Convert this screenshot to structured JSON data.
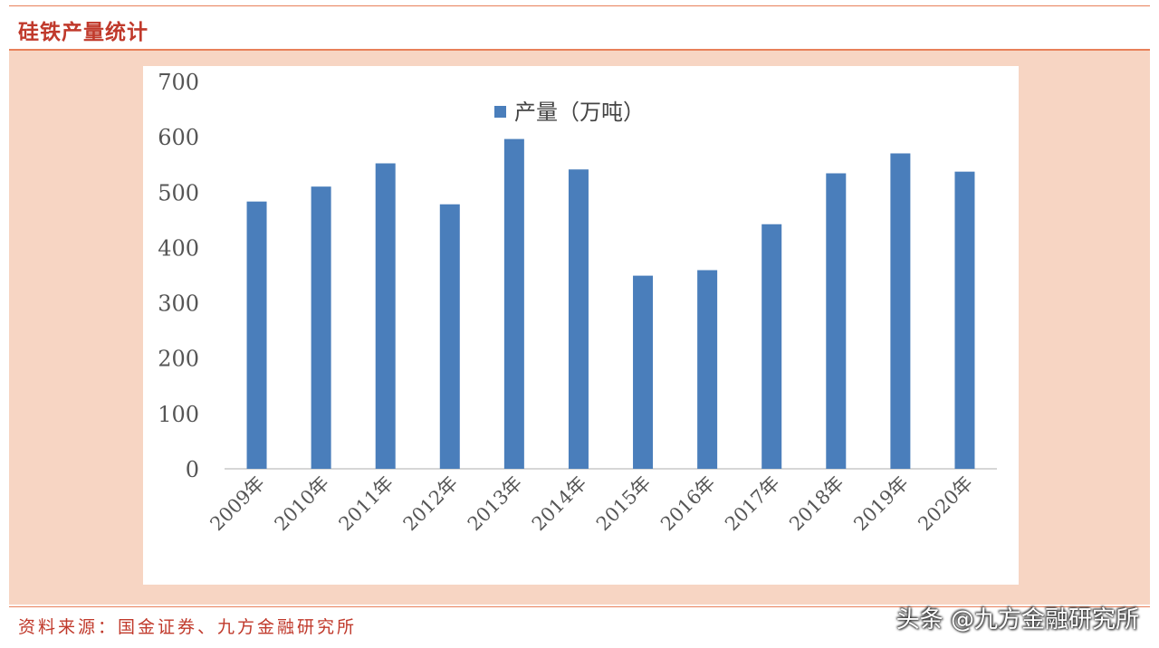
{
  "header": {
    "title": "硅铁产量统计"
  },
  "footer": {
    "source": "资料来源：国金证券、九方金融研究所",
    "watermark": "头条 @九方金融研究所"
  },
  "colors": {
    "accent": "#c0392b",
    "bar": "#4a7ebb",
    "panel": "#f7d5c3"
  },
  "chart_data": {
    "type": "bar",
    "title": "",
    "xlabel": "",
    "ylabel": "",
    "legend": "top-center",
    "grid": false,
    "ylim": [
      0,
      700
    ],
    "yticks": [
      0,
      100,
      200,
      300,
      400,
      500,
      600,
      700
    ],
    "categories": [
      "2009年",
      "2010年",
      "2011年",
      "2012年",
      "2013年",
      "2014年",
      "2015年",
      "2016年",
      "2017年",
      "2018年",
      "2019年",
      "2020年"
    ],
    "series": [
      {
        "name": "产量（万吨）",
        "values": [
          483,
          510,
          552,
          478,
          596,
          541,
          349,
          359,
          442,
          534,
          570,
          537
        ]
      }
    ]
  }
}
